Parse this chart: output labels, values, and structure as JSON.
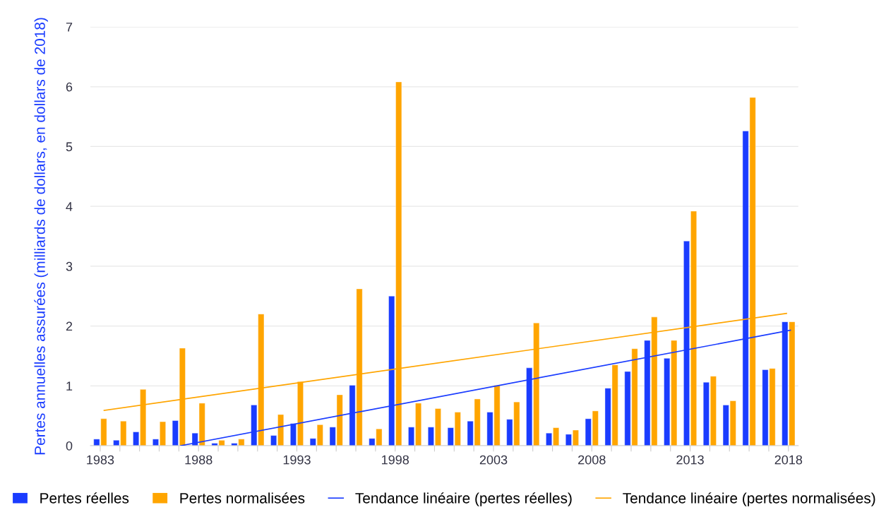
{
  "chart_data": {
    "type": "bar",
    "ylabel": "Pertes annuelles assurées (milliards de dollars, en dollars de 2018)",
    "x": [
      1983,
      1984,
      1985,
      1986,
      1987,
      1988,
      1989,
      1990,
      1991,
      1992,
      1993,
      1994,
      1995,
      1996,
      1997,
      1998,
      1999,
      2000,
      2001,
      2002,
      2003,
      2004,
      2005,
      2006,
      2007,
      2008,
      2009,
      2010,
      2011,
      2012,
      2013,
      2014,
      2015,
      2016,
      2017,
      2018
    ],
    "series": [
      {
        "name": "Pertes réelles",
        "color": "#1a3cff",
        "values": [
          0.11,
          0.09,
          0.23,
          0.11,
          0.42,
          0.21,
          0.04,
          0.04,
          0.68,
          0.17,
          0.37,
          0.12,
          0.31,
          1.01,
          0.12,
          2.5,
          0.31,
          0.31,
          0.3,
          0.41,
          0.56,
          0.44,
          1.3,
          0.21,
          0.19,
          0.45,
          0.96,
          1.24,
          1.76,
          1.46,
          3.42,
          1.06,
          0.68,
          5.26,
          1.27,
          2.07
        ]
      },
      {
        "name": "Pertes normalisées",
        "color": "#ffa500",
        "values": [
          0.45,
          0.41,
          0.94,
          0.4,
          1.63,
          0.71,
          0.09,
          0.11,
          2.2,
          0.52,
          1.07,
          0.35,
          0.85,
          2.62,
          0.28,
          6.08,
          0.71,
          0.62,
          0.56,
          0.78,
          1.01,
          0.73,
          2.05,
          0.3,
          0.26,
          0.58,
          1.35,
          1.62,
          2.15,
          1.76,
          3.92,
          1.16,
          0.75,
          5.82,
          1.29,
          2.07
        ]
      },
      {
        "name": "Tendance linéaire (pertes réelles)",
        "type": "line",
        "color": "#1a3cff",
        "x": [
          1987.1,
          2018.1
        ],
        "values": [
          0,
          1.93
        ]
      },
      {
        "name": "Tendance linéaire (pertes normalisées)",
        "type": "line",
        "color": "#ffa500",
        "x": [
          1983.2,
          2017.9
        ],
        "values": [
          0.59,
          2.21
        ]
      }
    ],
    "xlim": [
      1982.5,
      2018.5
    ],
    "xticks": [
      1983,
      {
        "value": 1984,
        "label": null
      },
      {
        "value": 1985,
        "label": null
      },
      {
        "value": 1986,
        "label": null
      },
      {
        "value": 1987,
        "label": null
      },
      1988,
      {
        "value": 1989,
        "label": null
      },
      {
        "value": 1990,
        "label": null
      },
      {
        "value": 1991,
        "label": null
      },
      {
        "value": 1992,
        "label": null
      },
      1993,
      {
        "value": 1994,
        "label": null
      },
      {
        "value": 1995,
        "label": null
      },
      {
        "value": 1996,
        "label": null
      },
      {
        "value": 1997,
        "label": null
      },
      1998,
      {
        "value": 1999,
        "label": null
      },
      {
        "value": 2000,
        "label": null
      },
      {
        "value": 2001,
        "label": null
      },
      {
        "value": 2002,
        "label": null
      },
      2003,
      {
        "value": 2004,
        "label": null
      },
      {
        "value": 2005,
        "label": null
      },
      {
        "value": 2006,
        "label": null
      },
      {
        "value": 2007,
        "label": null
      },
      2008,
      {
        "value": 2009,
        "label": null
      },
      {
        "value": 2010,
        "label": null
      },
      {
        "value": 2011,
        "label": null
      },
      {
        "value": 2012,
        "label": null
      },
      2013,
      {
        "value": 2014,
        "label": null
      },
      {
        "value": 2015,
        "label": null
      },
      {
        "value": 2016,
        "label": null
      },
      {
        "value": 2017,
        "label": null
      },
      2018
    ],
    "ylim": [
      0,
      7
    ],
    "yticks": [
      0,
      1,
      2,
      3,
      4,
      5,
      6,
      7
    ],
    "grid": "y",
    "legend": "bottom"
  }
}
